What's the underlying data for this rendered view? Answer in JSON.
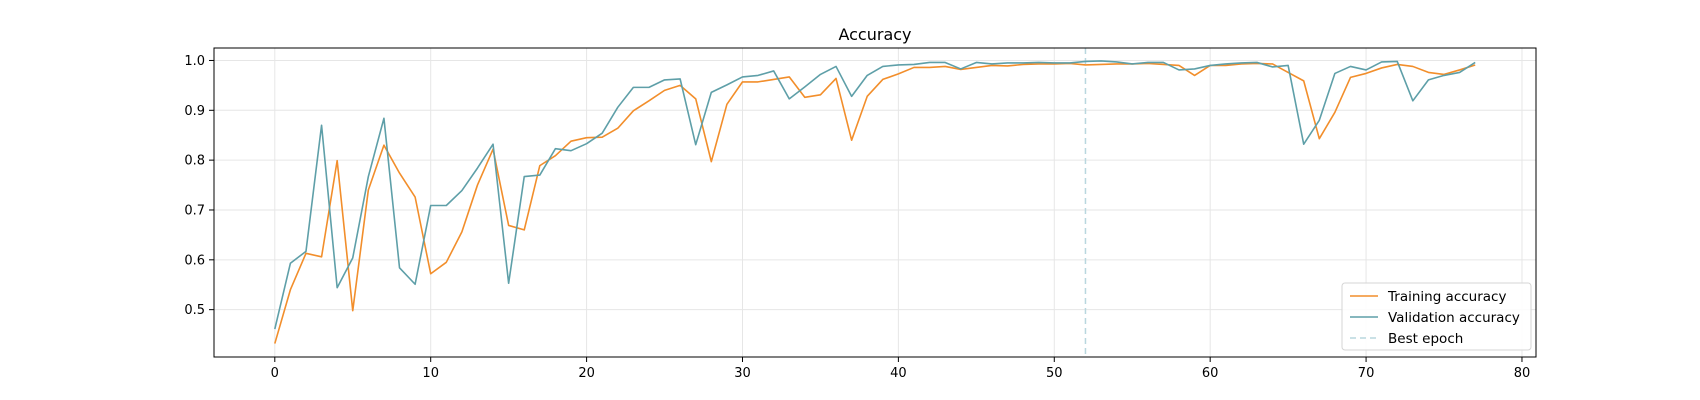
{
  "chart_data": {
    "type": "line",
    "title": "Accuracy",
    "xlabel": "",
    "ylabel": "",
    "xlim": [
      -3.9,
      80.9
    ],
    "ylim": [
      0.405,
      1.025
    ],
    "x_ticks": [
      0,
      10,
      20,
      30,
      40,
      50,
      60,
      70,
      80
    ],
    "y_ticks": [
      0.5,
      0.6,
      0.7,
      0.8,
      0.9,
      1.0
    ],
    "x_tick_labels": [
      "0",
      "10",
      "20",
      "30",
      "40",
      "50",
      "60",
      "70",
      "80"
    ],
    "y_tick_labels": [
      "0.5",
      "0.6",
      "0.7",
      "0.8",
      "0.9",
      "1.0"
    ],
    "grid": true,
    "legend_position": "bottom-right",
    "series": [
      {
        "name": "Training accuracy",
        "color": "#f28e2b",
        "values": [
          0.432,
          0.54,
          0.613,
          0.606,
          0.799,
          0.498,
          0.74,
          0.83,
          0.774,
          0.726,
          0.572,
          0.595,
          0.656,
          0.75,
          0.822,
          0.669,
          0.66,
          0.789,
          0.809,
          0.838,
          0.845,
          0.846,
          0.864,
          0.899,
          0.919,
          0.94,
          0.95,
          0.923,
          0.797,
          0.912,
          0.957,
          0.957,
          0.962,
          0.967,
          0.926,
          0.931,
          0.964,
          0.84,
          0.928,
          0.962,
          0.973,
          0.986,
          0.986,
          0.988,
          0.982,
          0.986,
          0.99,
          0.989,
          0.992,
          0.993,
          0.993,
          0.994,
          0.991,
          0.992,
          0.993,
          0.993,
          0.994,
          0.992,
          0.99,
          0.97,
          0.99,
          0.99,
          0.993,
          0.994,
          0.993,
          0.976,
          0.959,
          0.843,
          0.896,
          0.966,
          0.974,
          0.985,
          0.992,
          0.988,
          0.976,
          0.972,
          0.981,
          0.991
        ]
      },
      {
        "name": "Validation accuracy",
        "color": "#5e9fa8",
        "values": [
          0.461,
          0.593,
          0.617,
          0.87,
          0.544,
          0.604,
          0.767,
          0.884,
          0.584,
          0.551,
          0.709,
          0.709,
          0.739,
          0.784,
          0.832,
          0.553,
          0.767,
          0.77,
          0.823,
          0.819,
          0.833,
          0.854,
          0.906,
          0.946,
          0.946,
          0.961,
          0.963,
          0.831,
          0.936,
          0.951,
          0.967,
          0.97,
          0.979,
          0.923,
          0.947,
          0.972,
          0.988,
          0.928,
          0.97,
          0.988,
          0.991,
          0.992,
          0.996,
          0.996,
          0.983,
          0.996,
          0.993,
          0.995,
          0.995,
          0.996,
          0.995,
          0.995,
          0.998,
          0.999,
          0.997,
          0.993,
          0.996,
          0.996,
          0.981,
          0.983,
          0.99,
          0.993,
          0.995,
          0.996,
          0.987,
          0.99,
          0.832,
          0.88,
          0.974,
          0.988,
          0.981,
          0.997,
          0.998,
          0.919,
          0.961,
          0.97,
          0.976,
          0.996
        ]
      }
    ],
    "best_epoch": {
      "name": "Best epoch",
      "x": 52,
      "color": "#b9d7de"
    }
  }
}
